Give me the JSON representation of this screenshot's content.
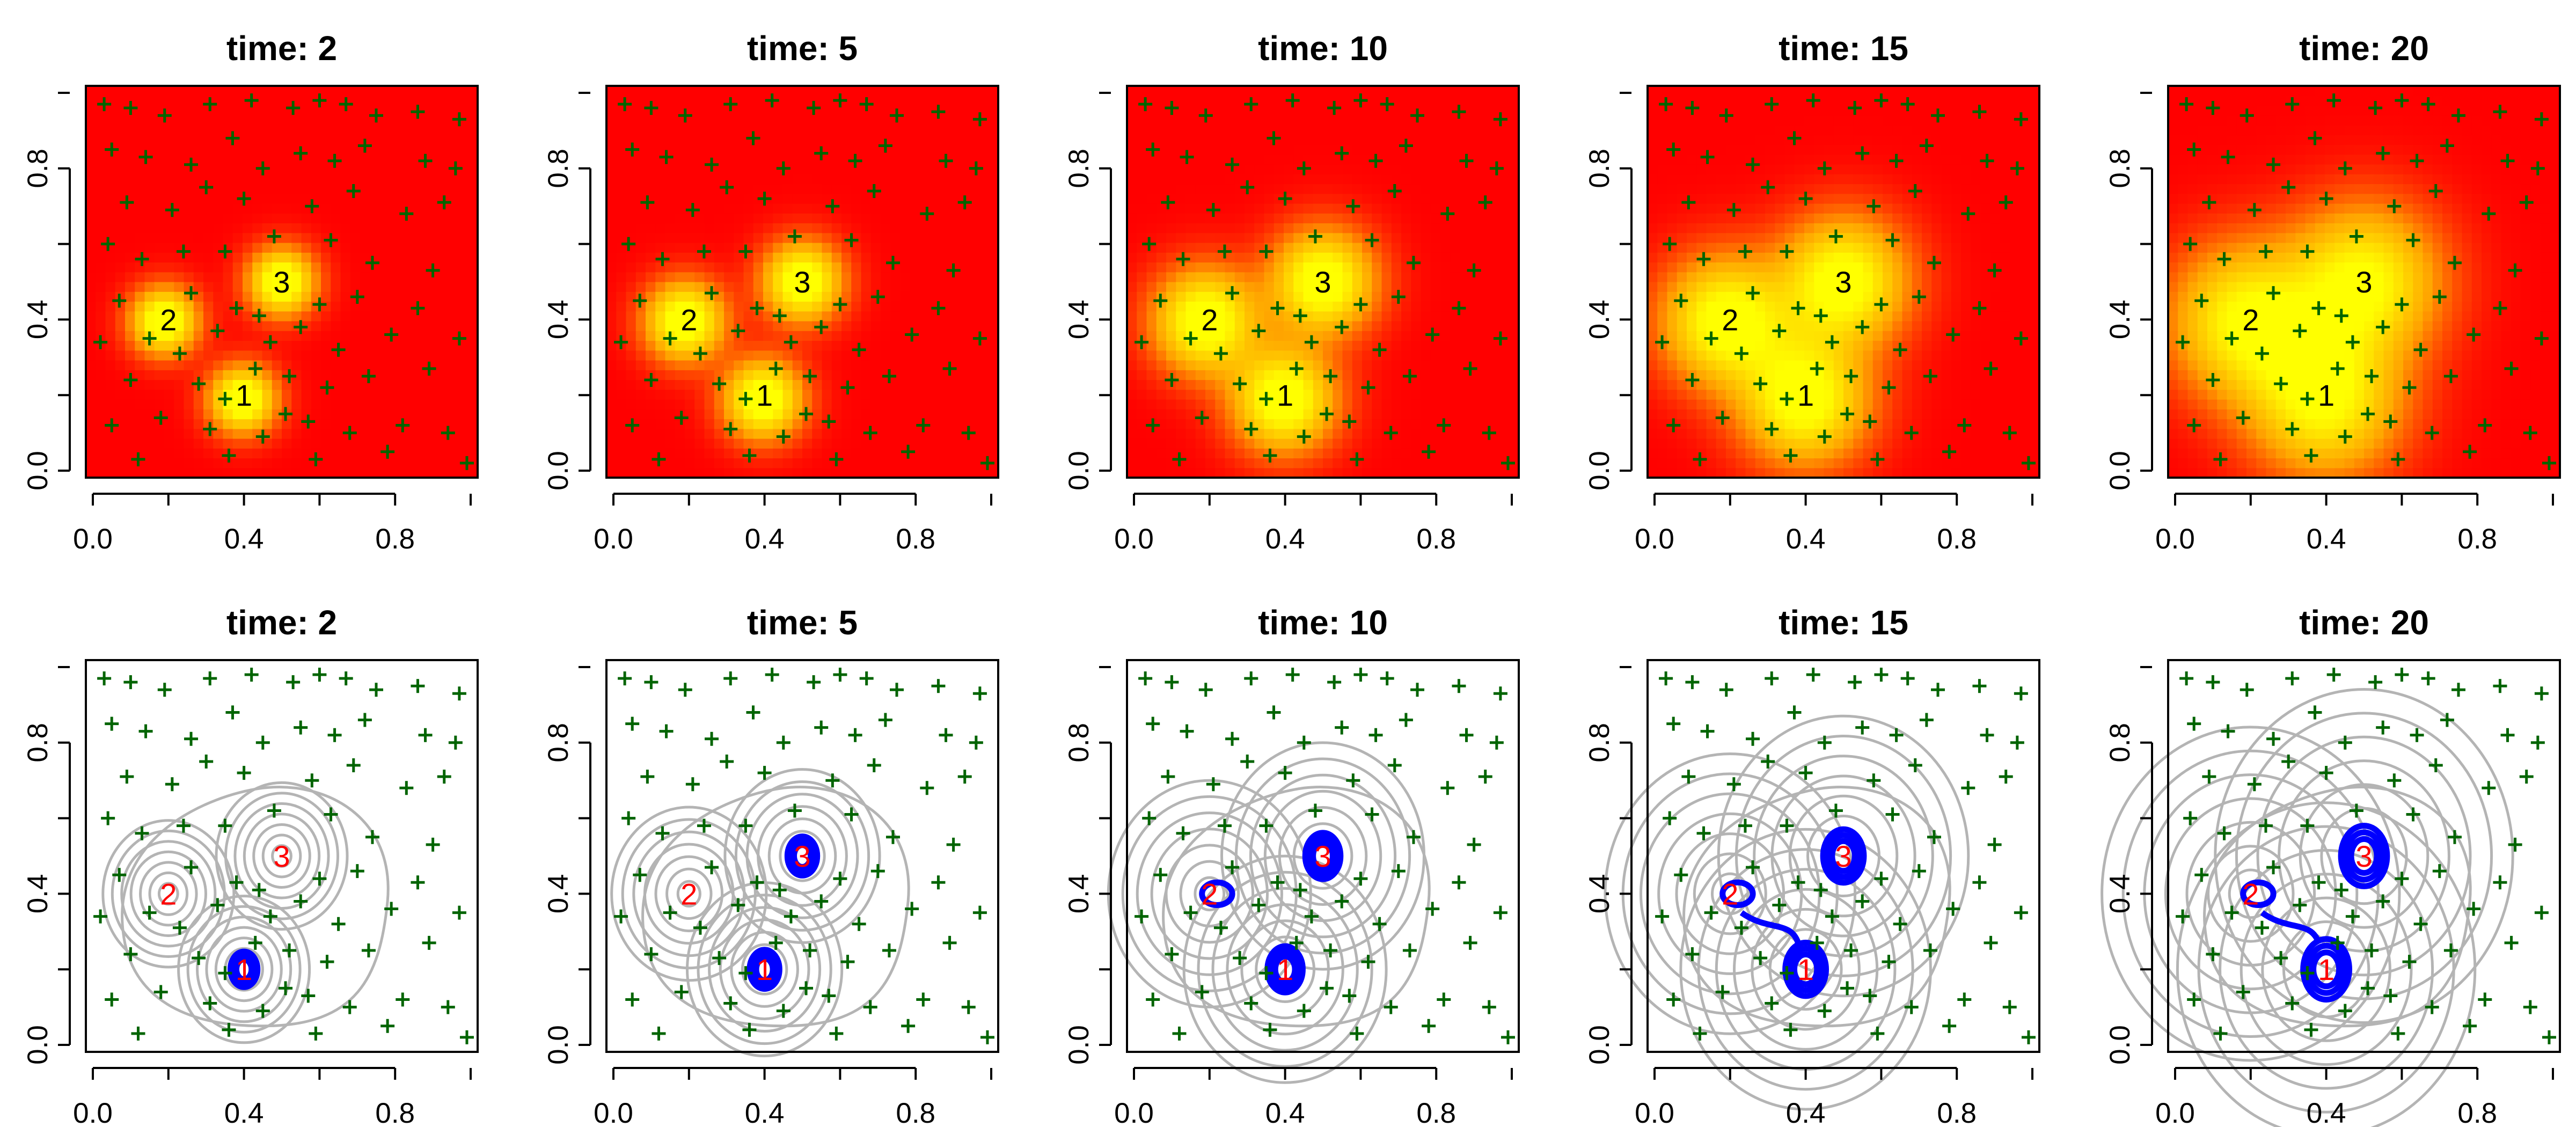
{
  "figure": {
    "rows": 2,
    "cols": 5
  },
  "colors": {
    "heat_low": "#ff0000",
    "heat_mid": "#ffa500",
    "heat_high": "#ffff00",
    "points": "#006400",
    "contour": "#b4b4b4",
    "highlight_contour": "#0000ff",
    "source_label_top": "#000000",
    "source_label_bottom": "#ff0000"
  },
  "chart_data": {
    "type": "heatmap",
    "times": [
      2,
      5,
      10,
      15,
      20
    ],
    "title_prefix": "time: ",
    "row_types": [
      "heatmap",
      "contour"
    ],
    "xlim": [
      0,
      1
    ],
    "ylim": [
      0,
      1
    ],
    "xticks": [
      "0.0",
      "0.4",
      "0.8"
    ],
    "yticks": [
      "0.0",
      "0.4",
      "0.8"
    ],
    "panel_titles": [
      "time: 2",
      "time: 5",
      "time: 10",
      "time: 15",
      "time: 20"
    ],
    "sources": [
      {
        "label": "1",
        "x": 0.4,
        "y": 0.2
      },
      {
        "label": "2",
        "x": 0.2,
        "y": 0.4
      },
      {
        "label": "3",
        "x": 0.5,
        "y": 0.5
      }
    ],
    "spread_by_time": {
      "2": 0.055,
      "5": 0.065,
      "10": 0.085,
      "15": 0.105,
      "20": 0.125
    },
    "observation_points": [
      [
        0.03,
        0.97
      ],
      [
        0.1,
        0.96
      ],
      [
        0.19,
        0.94
      ],
      [
        0.31,
        0.97
      ],
      [
        0.42,
        0.98
      ],
      [
        0.53,
        0.96
      ],
      [
        0.6,
        0.98
      ],
      [
        0.67,
        0.97
      ],
      [
        0.75,
        0.94
      ],
      [
        0.86,
        0.95
      ],
      [
        0.97,
        0.93
      ],
      [
        0.05,
        0.85
      ],
      [
        0.14,
        0.83
      ],
      [
        0.26,
        0.81
      ],
      [
        0.37,
        0.88
      ],
      [
        0.45,
        0.8
      ],
      [
        0.55,
        0.84
      ],
      [
        0.64,
        0.82
      ],
      [
        0.72,
        0.86
      ],
      [
        0.88,
        0.82
      ],
      [
        0.96,
        0.8
      ],
      [
        0.09,
        0.71
      ],
      [
        0.21,
        0.69
      ],
      [
        0.3,
        0.75
      ],
      [
        0.4,
        0.72
      ],
      [
        0.58,
        0.7
      ],
      [
        0.69,
        0.74
      ],
      [
        0.83,
        0.68
      ],
      [
        0.93,
        0.71
      ],
      [
        0.04,
        0.6
      ],
      [
        0.13,
        0.56
      ],
      [
        0.35,
        0.58
      ],
      [
        0.63,
        0.61
      ],
      [
        0.74,
        0.55
      ],
      [
        0.9,
        0.53
      ],
      [
        0.07,
        0.45
      ],
      [
        0.26,
        0.47
      ],
      [
        0.38,
        0.43
      ],
      [
        0.44,
        0.41
      ],
      [
        0.6,
        0.44
      ],
      [
        0.7,
        0.46
      ],
      [
        0.86,
        0.43
      ],
      [
        0.02,
        0.34
      ],
      [
        0.15,
        0.35
      ],
      [
        0.23,
        0.31
      ],
      [
        0.33,
        0.37
      ],
      [
        0.47,
        0.34
      ],
      [
        0.55,
        0.38
      ],
      [
        0.65,
        0.32
      ],
      [
        0.79,
        0.36
      ],
      [
        0.97,
        0.35
      ],
      [
        0.1,
        0.24
      ],
      [
        0.28,
        0.23
      ],
      [
        0.43,
        0.27
      ],
      [
        0.52,
        0.25
      ],
      [
        0.62,
        0.22
      ],
      [
        0.73,
        0.25
      ],
      [
        0.89,
        0.27
      ],
      [
        0.05,
        0.12
      ],
      [
        0.18,
        0.14
      ],
      [
        0.31,
        0.11
      ],
      [
        0.45,
        0.09
      ],
      [
        0.57,
        0.13
      ],
      [
        0.68,
        0.1
      ],
      [
        0.82,
        0.12
      ],
      [
        0.94,
        0.1
      ],
      [
        0.12,
        0.03
      ],
      [
        0.36,
        0.04
      ],
      [
        0.59,
        0.03
      ],
      [
        0.78,
        0.05
      ],
      [
        0.99,
        0.02
      ],
      [
        0.24,
        0.58
      ],
      [
        0.48,
        0.62
      ],
      [
        0.51,
        0.15
      ],
      [
        0.35,
        0.19
      ]
    ]
  }
}
